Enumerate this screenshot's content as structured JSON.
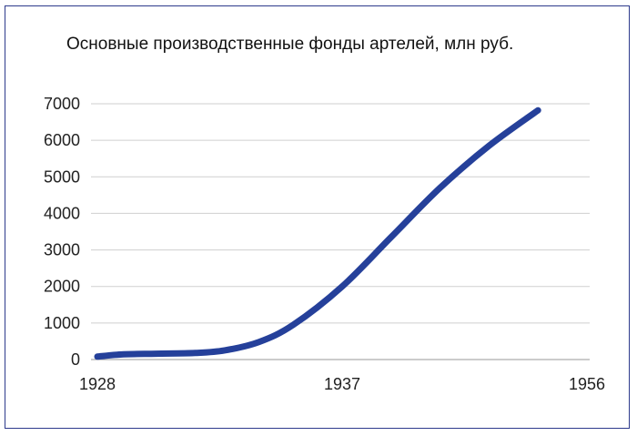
{
  "chart_data": {
    "type": "line",
    "title": "Основные производственные фонды артелей, млн руб.",
    "xlabel": "",
    "ylabel": "",
    "ylim": [
      0,
      7000
    ],
    "yticks": [
      "0",
      "1000",
      "2000",
      "3000",
      "4000",
      "5000",
      "6000",
      "7000"
    ],
    "xticks": [
      "1928",
      "1937",
      "1956"
    ],
    "grid": "horizontal",
    "legend": "none",
    "line_color": "#25409a",
    "series": [
      {
        "points": [
          {
            "x": 0.0,
            "y": 80
          },
          {
            "x": 0.05,
            "y": 140
          },
          {
            "x": 0.12,
            "y": 160
          },
          {
            "x": 0.2,
            "y": 180
          },
          {
            "x": 0.26,
            "y": 250
          },
          {
            "x": 0.33,
            "y": 480
          },
          {
            "x": 0.4,
            "y": 950
          },
          {
            "x": 0.5,
            "y": 2000
          },
          {
            "x": 0.6,
            "y": 3350
          },
          {
            "x": 0.7,
            "y": 4700
          },
          {
            "x": 0.8,
            "y": 5850
          },
          {
            "x": 0.9,
            "y": 6820
          }
        ]
      }
    ]
  }
}
